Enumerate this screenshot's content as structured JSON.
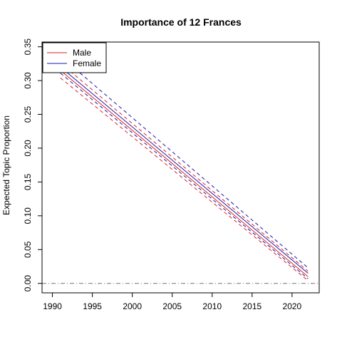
{
  "chart_data": {
    "type": "line",
    "title": "Importance of 12 Frances",
    "xlabel": "",
    "ylabel": "Expected Topic Proportion",
    "xlim": [
      1990,
      2022
    ],
    "ylim": [
      0,
      0.35
    ],
    "x_ticks": [
      1990,
      1995,
      2000,
      2005,
      2010,
      2015,
      2020
    ],
    "y_ticks": [
      0.0,
      0.05,
      0.1,
      0.15,
      0.2,
      0.25,
      0.3,
      0.35
    ],
    "x_tick_labels": [
      "1990",
      "1995",
      "2000",
      "2005",
      "2010",
      "2015",
      "2020"
    ],
    "y_tick_labels": [
      "0.00",
      "0.05",
      "0.10",
      "0.15",
      "0.20",
      "0.25",
      "0.30",
      "0.35"
    ],
    "reference_line_y": 0,
    "legend_position": "top-left",
    "series": [
      {
        "name": "Male",
        "color": "#dd2222",
        "x": [
          1991,
          2022
        ],
        "values": [
          0.315,
          0.01
        ],
        "ci_lower": [
          0.304,
          0.004
        ],
        "ci_upper": [
          0.326,
          0.018
        ]
      },
      {
        "name": "Female",
        "color": "#1a1aa6",
        "x": [
          1991,
          2022
        ],
        "values": [
          0.32,
          0.015
        ],
        "ci_lower": [
          0.311,
          0.007
        ],
        "ci_upper": [
          0.336,
          0.023
        ]
      }
    ]
  }
}
